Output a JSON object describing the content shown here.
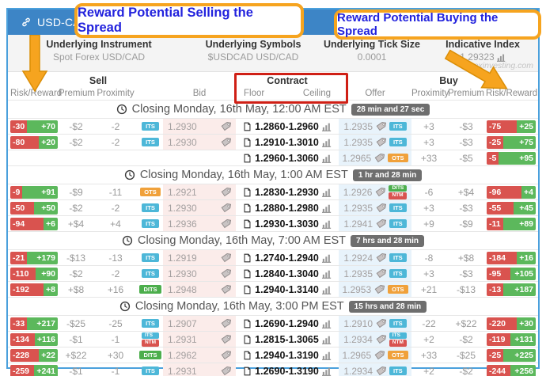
{
  "titlebar": {
    "symbol": "USD-CAD"
  },
  "callouts": {
    "sell": "Reward Potential Selling the Spread",
    "buy": "Reward Potential Buying the Spread"
  },
  "watermark": "apexinvesting.com",
  "info": {
    "instrument": {
      "label": "Underlying Instrument",
      "value": "Spot Forex USD/CAD"
    },
    "symbols": {
      "label": "Underlying Symbols",
      "value": "$USDCAD USD/CAD"
    },
    "tick_size": {
      "label": "Underlying Tick Size",
      "value": "0.0001"
    },
    "indicative": {
      "label": "Indicative Index",
      "value": "1.29323"
    }
  },
  "headers": {
    "sell": "Sell",
    "buy": "Buy",
    "contract": "Contract",
    "risk_reward": "Risk/Reward",
    "premium": "Premium",
    "proximity": "Proximity",
    "bid": "Bid",
    "floor": "Floor",
    "ceiling": "Ceiling",
    "offer": "Offer"
  },
  "badge_colors": {
    "ITS": "#4db7d8",
    "OTS": "#f0a13b",
    "DITS": "#4cae4c",
    "NTM": "#d9534f"
  },
  "colors": {
    "accent_orange": "#f6a41f",
    "callout_text": "#2222dd",
    "titlebar_blue": "#3d85c6",
    "frame_blue": "#4aa0dc",
    "risk_red": "#d9534f",
    "reward_green": "#5cb85c",
    "bid_bg": "#fbecea",
    "offer_bg": "#e8f3fb",
    "redbox": "#cf1f15"
  },
  "sections": [
    {
      "title": "Closing Monday, 16th May, 12:00 AM EST",
      "countdown": "28 min and 27 sec",
      "rows": [
        {
          "sell": {
            "rr": [
              "-30",
              "+70"
            ],
            "premium": "-$2",
            "proximity": "-2",
            "badges": [
              "ITS"
            ]
          },
          "bid": "1.2930",
          "contract": "1.2860-1.2960",
          "offer": "1.2935",
          "buy": {
            "badges": [
              "ITS"
            ],
            "proximity": "+3",
            "premium": "-$3",
            "rr": [
              "-75",
              "+25"
            ]
          }
        },
        {
          "sell": {
            "rr": [
              "-80",
              "+20"
            ],
            "premium": "-$2",
            "proximity": "-2",
            "badges": [
              "ITS"
            ]
          },
          "bid": "1.2930",
          "contract": "1.2910-1.3010",
          "offer": "1.2935",
          "buy": {
            "badges": [
              "ITS"
            ],
            "proximity": "+3",
            "premium": "-$3",
            "rr": [
              "-25",
              "+75"
            ]
          }
        },
        {
          "sell": null,
          "bid": null,
          "contract": "1.2960-1.3060",
          "offer": "1.2965",
          "buy": {
            "badges": [
              "OTS"
            ],
            "proximity": "+33",
            "premium": "-$5",
            "rr": [
              "-5",
              "+95"
            ]
          }
        }
      ]
    },
    {
      "title": "Closing Monday, 16th May, 1:00 AM EST",
      "countdown": "1 hr and 28 min",
      "rows": [
        {
          "sell": {
            "rr": [
              "-9",
              "+91"
            ],
            "premium": "-$9",
            "proximity": "-11",
            "badges": [
              "OTS"
            ]
          },
          "bid": "1.2921",
          "contract": "1.2830-1.2930",
          "offer": "1.2926",
          "buy": {
            "badges": [
              "DITS",
              "NTM"
            ],
            "proximity": "-6",
            "premium": "+$4",
            "rr": [
              "-96",
              "+4"
            ]
          }
        },
        {
          "sell": {
            "rr": [
              "-50",
              "+50"
            ],
            "premium": "-$2",
            "proximity": "-2",
            "badges": [
              "ITS"
            ]
          },
          "bid": "1.2930",
          "contract": "1.2880-1.2980",
          "offer": "1.2935",
          "buy": {
            "badges": [
              "ITS"
            ],
            "proximity": "+3",
            "premium": "-$3",
            "rr": [
              "-55",
              "+45"
            ]
          }
        },
        {
          "sell": {
            "rr": [
              "-94",
              "+6"
            ],
            "premium": "+$4",
            "proximity": "+4",
            "badges": [
              "ITS"
            ]
          },
          "bid": "1.2936",
          "contract": "1.2930-1.3030",
          "offer": "1.2941",
          "buy": {
            "badges": [
              "ITS"
            ],
            "proximity": "+9",
            "premium": "-$9",
            "rr": [
              "-11",
              "+89"
            ]
          }
        }
      ]
    },
    {
      "title": "Closing Monday, 16th May, 7:00 AM EST",
      "countdown": "7 hrs and 28 min",
      "rows": [
        {
          "sell": {
            "rr": [
              "-21",
              "+179"
            ],
            "premium": "-$13",
            "proximity": "-13",
            "badges": [
              "ITS"
            ]
          },
          "bid": "1.2919",
          "contract": "1.2740-1.2940",
          "offer": "1.2924",
          "buy": {
            "badges": [
              "ITS"
            ],
            "proximity": "-8",
            "premium": "+$8",
            "rr": [
              "-184",
              "+16"
            ]
          }
        },
        {
          "sell": {
            "rr": [
              "-110",
              "+90"
            ],
            "premium": "-$2",
            "proximity": "-2",
            "badges": [
              "ITS"
            ]
          },
          "bid": "1.2930",
          "contract": "1.2840-1.3040",
          "offer": "1.2935",
          "buy": {
            "badges": [
              "ITS"
            ],
            "proximity": "+3",
            "premium": "-$3",
            "rr": [
              "-95",
              "+105"
            ]
          }
        },
        {
          "sell": {
            "rr": [
              "-192",
              "+8"
            ],
            "premium": "+$8",
            "proximity": "+16",
            "badges": [
              "DITS"
            ]
          },
          "bid": "1.2948",
          "contract": "1.2940-1.3140",
          "offer": "1.2953",
          "buy": {
            "badges": [
              "OTS"
            ],
            "proximity": "+21",
            "premium": "-$13",
            "rr": [
              "-13",
              "+187"
            ]
          }
        }
      ]
    },
    {
      "title": "Closing Monday, 16th May, 3:00 PM EST",
      "countdown": "15 hrs and 28 min",
      "rows": [
        {
          "sell": {
            "rr": [
              "-33",
              "+217"
            ],
            "premium": "-$25",
            "proximity": "-25",
            "badges": [
              "ITS"
            ]
          },
          "bid": "1.2907",
          "contract": "1.2690-1.2940",
          "offer": "1.2910",
          "buy": {
            "badges": [
              "ITS"
            ],
            "proximity": "-22",
            "premium": "+$22",
            "rr": [
              "-220",
              "+30"
            ]
          }
        },
        {
          "sell": {
            "rr": [
              "-134",
              "+116"
            ],
            "premium": "-$1",
            "proximity": "-1",
            "badges": [
              "ITS",
              "NTM"
            ]
          },
          "bid": "1.2931",
          "contract": "1.2815-1.3065",
          "offer": "1.2934",
          "buy": {
            "badges": [
              "ITS",
              "NTM"
            ],
            "proximity": "+2",
            "premium": "-$2",
            "rr": [
              "-119",
              "+131"
            ]
          }
        },
        {
          "sell": {
            "rr": [
              "-228",
              "+22"
            ],
            "premium": "+$22",
            "proximity": "+30",
            "badges": [
              "DITS"
            ]
          },
          "bid": "1.2962",
          "contract": "1.2940-1.3190",
          "offer": "1.2965",
          "buy": {
            "badges": [
              "OTS"
            ],
            "proximity": "+33",
            "premium": "-$25",
            "rr": [
              "-25",
              "+225"
            ]
          }
        },
        {
          "sell": {
            "rr": [
              "-259",
              "+241"
            ],
            "premium": "-$1",
            "proximity": "-1",
            "badges": [
              "ITS"
            ]
          },
          "bid": "1.2931",
          "contract": "1.2690-1.3190",
          "offer": "1.2934",
          "buy": {
            "badges": [
              "ITS"
            ],
            "proximity": "+2",
            "premium": "-$2",
            "rr": [
              "-244",
              "+256"
            ]
          }
        }
      ]
    }
  ]
}
